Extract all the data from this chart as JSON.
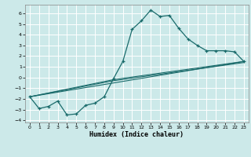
{
  "xlabel": "Humidex (Indice chaleur)",
  "ylabel": "",
  "background_color": "#cce9e9",
  "grid_color": "#ffffff",
  "line_color": "#1a6b6b",
  "xlim": [
    -0.5,
    23.5
  ],
  "ylim": [
    -4.2,
    6.8
  ],
  "yticks": [
    -4,
    -3,
    -2,
    -1,
    0,
    1,
    2,
    3,
    4,
    5,
    6
  ],
  "xticks": [
    0,
    1,
    2,
    3,
    4,
    5,
    6,
    7,
    8,
    9,
    10,
    11,
    12,
    13,
    14,
    15,
    16,
    17,
    18,
    19,
    20,
    21,
    22,
    23
  ],
  "curve1_x": [
    0,
    1,
    2,
    3,
    4,
    5,
    6,
    7,
    8,
    9,
    10,
    11,
    12,
    13,
    14,
    15,
    16,
    17,
    18,
    19,
    20,
    21,
    22,
    23
  ],
  "curve1_y": [
    -1.8,
    -2.9,
    -2.7,
    -2.2,
    -3.5,
    -3.4,
    -2.6,
    -2.4,
    -1.8,
    -0.1,
    1.5,
    4.5,
    5.3,
    6.3,
    5.7,
    5.8,
    4.6,
    3.6,
    3.0,
    2.5,
    2.5,
    2.5,
    2.4,
    1.5
  ],
  "line1_x": [
    0,
    23
  ],
  "line1_y": [
    -1.8,
    1.5
  ],
  "line2_x": [
    0,
    9,
    23
  ],
  "line2_y": [
    -1.8,
    -0.2,
    1.5
  ],
  "line3_x": [
    0,
    9,
    23
  ],
  "line3_y": [
    -1.8,
    -0.3,
    1.4
  ]
}
